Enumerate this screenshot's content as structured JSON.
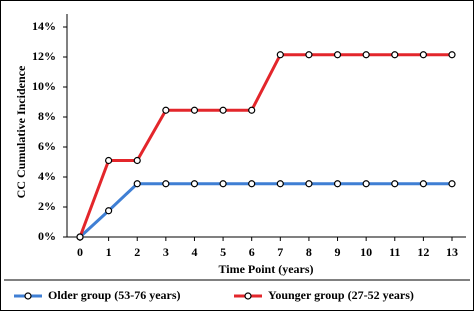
{
  "chart_data": {
    "type": "line",
    "y_label": "CC Cumulative Incidence",
    "x_label": "Time Point (years)",
    "x": [
      0,
      1,
      2,
      3,
      4,
      5,
      6,
      7,
      8,
      9,
      10,
      11,
      12,
      13
    ],
    "xlim": [
      0,
      13
    ],
    "xticks": [
      0,
      1,
      2,
      3,
      4,
      5,
      6,
      7,
      8,
      9,
      10,
      11,
      12,
      13
    ],
    "ylim": [
      0,
      14
    ],
    "yticks": [
      {
        "value": 0,
        "label": "0%"
      },
      {
        "value": 2,
        "label": "2%"
      },
      {
        "value": 4,
        "label": "4%"
      },
      {
        "value": 6,
        "label": "6%"
      },
      {
        "value": 8,
        "label": "8%"
      },
      {
        "value": 10,
        "label": "10%"
      },
      {
        "value": 12,
        "label": "12%"
      },
      {
        "value": 14,
        "label": "14%"
      }
    ],
    "series": [
      {
        "name": "Older group (53-76 years)",
        "color": "#3f7fd4",
        "values": [
          0,
          1.75,
          3.55,
          3.55,
          3.55,
          3.55,
          3.55,
          3.55,
          3.55,
          3.55,
          3.55,
          3.55,
          3.55,
          3.55
        ]
      },
      {
        "name": "Younger group (27-52 years)",
        "color": "#e3262b",
        "values": [
          0,
          5.1,
          5.1,
          8.45,
          8.45,
          8.45,
          8.45,
          12.15,
          12.15,
          12.15,
          12.15,
          12.15,
          12.15,
          12.15
        ]
      }
    ],
    "legend": "bottom"
  }
}
